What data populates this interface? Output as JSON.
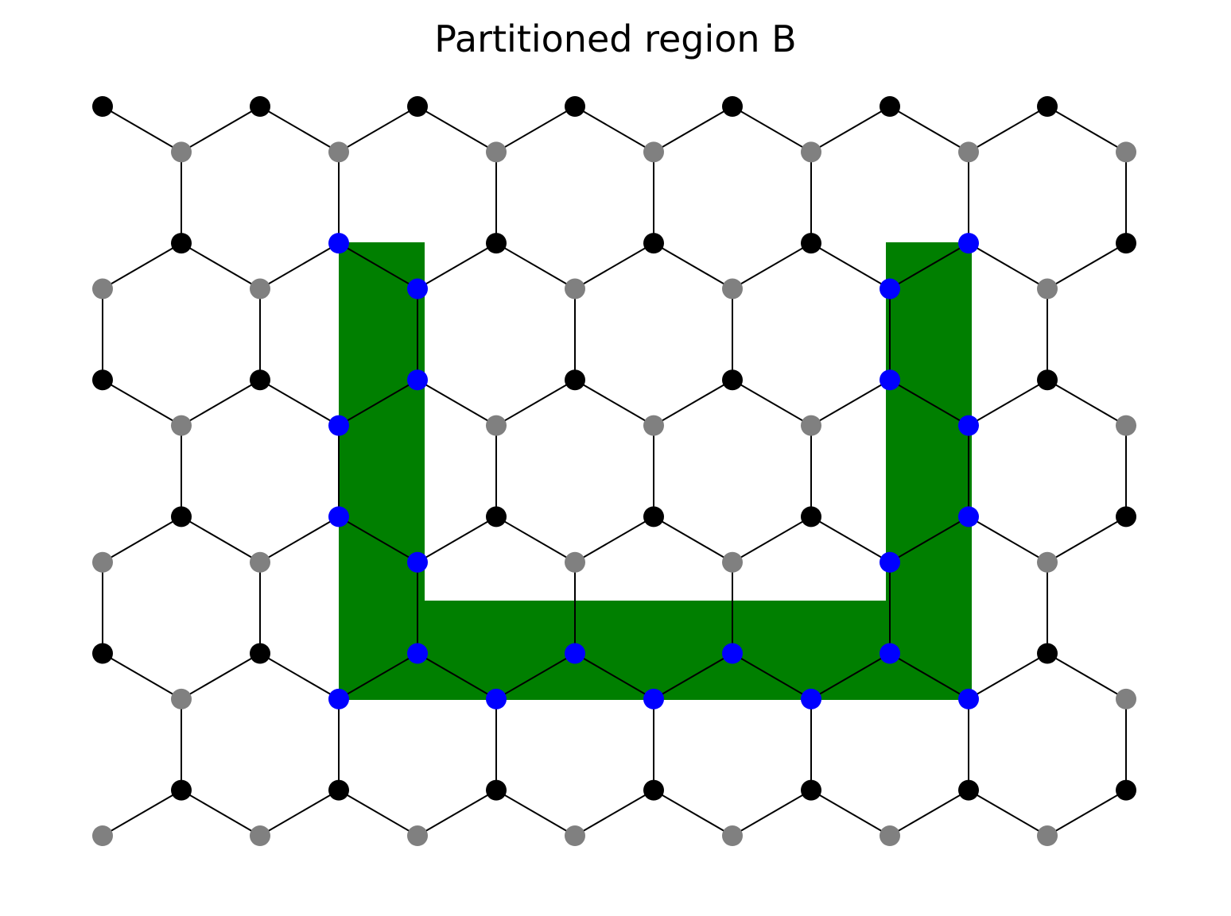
{
  "title": "Partitioned region B",
  "colors": {
    "background": "#ffffff",
    "edge": "#000000",
    "region": "#007f00",
    "sublattice_a": "#000000",
    "sublattice_b": "#808080",
    "boundary": "#0000ff"
  },
  "lattice": {
    "type": "honeycomb",
    "columns": 7,
    "rows": 4,
    "x_step": 1,
    "y_step": 1
  },
  "region_B": {
    "label": "B",
    "shape": "U",
    "x_range": [
      1.5,
      5.5
    ],
    "y_range": [
      0.5,
      3.5
    ],
    "arm_width": 0.55,
    "base_height": 0.65
  },
  "boundary_nodes": [
    [
      1.5,
      0.5
    ],
    [
      2.5,
      0.5
    ],
    [
      3.5,
      0.5
    ],
    [
      4.5,
      0.5
    ],
    [
      5.5,
      0.5
    ],
    [
      2.0,
      0.8
    ],
    [
      3.0,
      0.8
    ],
    [
      4.0,
      0.8
    ],
    [
      5.0,
      0.8
    ],
    [
      2.0,
      1.5
    ],
    [
      5.0,
      1.5
    ],
    [
      1.5,
      1.8
    ],
    [
      5.5,
      1.8
    ],
    [
      1.5,
      2.5
    ],
    [
      5.5,
      2.5
    ],
    [
      2.0,
      2.8
    ],
    [
      5.0,
      2.8
    ],
    [
      2.0,
      3.5
    ],
    [
      5.0,
      3.5
    ],
    [
      1.5,
      3.8
    ],
    [
      5.5,
      3.8
    ]
  ]
}
